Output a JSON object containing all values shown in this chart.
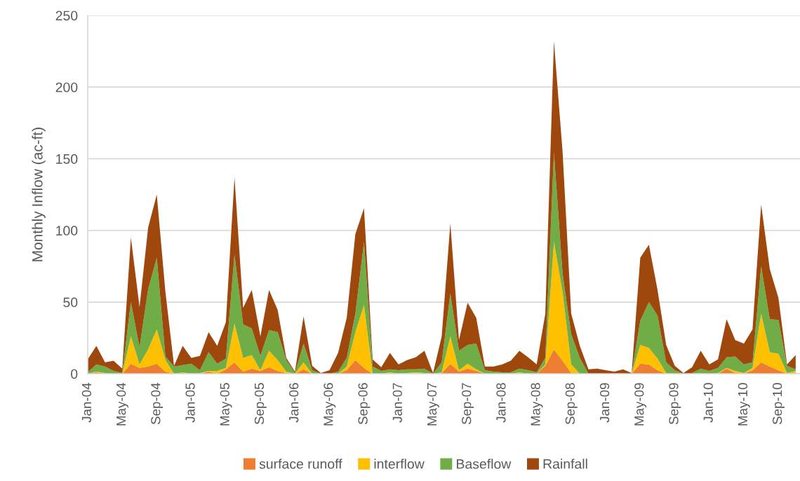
{
  "chart_data": {
    "type": "area",
    "stacked": true,
    "ylabel": "Monthly Inflow (ac-ft)",
    "categories": [
      "Jan-04",
      null,
      null,
      null,
      "May-04",
      null,
      null,
      null,
      "Sep-04",
      null,
      null,
      null,
      "Jan-05",
      null,
      null,
      null,
      "May-05",
      null,
      null,
      null,
      "Sep-05",
      null,
      null,
      null,
      "Jan-06",
      null,
      null,
      null,
      "May-06",
      null,
      null,
      null,
      "Sep-06",
      null,
      null,
      null,
      "Jan-07",
      null,
      null,
      null,
      "May-07",
      null,
      null,
      null,
      "Sep-07",
      null,
      null,
      null,
      "Jan-08",
      null,
      null,
      null,
      "May-08",
      null,
      null,
      null,
      "Sep-08",
      null,
      null,
      null,
      "Jan-09",
      null,
      null,
      null,
      "May-09",
      null,
      null,
      null,
      "Sep-09",
      null,
      null,
      null,
      "Jan-10",
      null,
      null,
      null,
      "May-10",
      null,
      null,
      null,
      "Sep-10",
      null,
      null
    ],
    "series": [
      {
        "name": "surface runoff",
        "color": "#ed7d31",
        "values": [
          0,
          1,
          0,
          0,
          0,
          7,
          4,
          5,
          7,
          1.5,
          0,
          0.5,
          0,
          0,
          1.5,
          0,
          3,
          8,
          1.5,
          3.5,
          2,
          4.5,
          2,
          0.5,
          0,
          3,
          0,
          0,
          0,
          0,
          2.5,
          9.5,
          4,
          0,
          0,
          0.5,
          0,
          0,
          0,
          0,
          0,
          0.5,
          7,
          1.5,
          3.5,
          2,
          0,
          0,
          0,
          0,
          0,
          0,
          0,
          5.5,
          17,
          9,
          0.5,
          0,
          0,
          0,
          0,
          0,
          0,
          0,
          7,
          6.5,
          2.5,
          0,
          0,
          0,
          0,
          0,
          0,
          0,
          3.5,
          0.5,
          0,
          2.5,
          8,
          5,
          2.5,
          0,
          0
        ]
      },
      {
        "name": "interflow",
        "color": "#ffc000",
        "values": [
          0,
          0.5,
          0.5,
          0,
          0,
          19,
          2.5,
          12,
          24,
          8,
          0,
          0.5,
          0,
          0.5,
          0.5,
          2,
          1,
          27,
          9.5,
          9.5,
          0.5,
          11.5,
          7.5,
          1,
          0,
          5,
          0,
          0,
          0,
          0,
          2.5,
          19.5,
          44,
          0,
          0,
          0.5,
          0,
          0.5,
          1,
          0.5,
          0,
          0.5,
          19,
          1,
          3.5,
          1,
          0,
          0,
          0,
          0,
          1,
          0,
          0,
          1,
          75,
          48,
          6,
          0,
          0,
          0,
          0,
          0,
          0,
          0,
          13,
          11.5,
          8,
          0.5,
          0,
          0,
          0,
          0.5,
          0,
          0.5,
          0.5,
          1.5,
          0.5,
          1.5,
          34,
          10,
          11.5,
          0.5,
          2
        ]
      },
      {
        "name": "Baseflow",
        "color": "#70ad47",
        "values": [
          1,
          5,
          4.5,
          2,
          0.5,
          24,
          12,
          42,
          50,
          2.5,
          5,
          5,
          7,
          2,
          13,
          5,
          6.5,
          48,
          23.5,
          18.5,
          10,
          14.5,
          19.5,
          8,
          0.5,
          13,
          2.5,
          0,
          0,
          1.5,
          6,
          13,
          44,
          5,
          2,
          2,
          2.5,
          2.5,
          2,
          3,
          0,
          7,
          30,
          13.5,
          13,
          18,
          2.5,
          1.5,
          1,
          1,
          2.5,
          2.5,
          1,
          4.5,
          62.5,
          13,
          21,
          11,
          0,
          0,
          0,
          0,
          0,
          0,
          17,
          32,
          30,
          7.5,
          2.5,
          0,
          0.5,
          3,
          2,
          3.5,
          7.5,
          10,
          6,
          4,
          33,
          23,
          23.5,
          5,
          1
        ]
      },
      {
        "name": "Rainfall",
        "color": "#9e480e",
        "values": [
          9,
          13,
          3,
          7,
          3,
          45,
          28,
          43,
          44,
          45,
          0.5,
          13.5,
          4,
          10,
          14,
          12.5,
          25.5,
          54,
          11.5,
          27,
          13.5,
          28,
          15.5,
          1.5,
          1,
          19,
          3,
          0.5,
          2.5,
          13,
          28,
          55.5,
          23.5,
          5,
          2.5,
          11.5,
          4,
          6.5,
          8.5,
          12.5,
          0.5,
          18,
          49,
          7.5,
          29.5,
          18,
          2.5,
          3.5,
          5.5,
          8,
          12.5,
          9,
          5.5,
          31,
          77.5,
          85,
          14.5,
          8.5,
          3,
          3.5,
          2.5,
          1.5,
          3,
          0.5,
          44,
          40,
          18,
          12,
          3,
          0.5,
          4,
          12.5,
          4.5,
          6,
          26.5,
          11.5,
          14.5,
          23,
          43,
          35,
          15.5,
          1,
          10
        ]
      }
    ],
    "ylim": [
      0,
      250
    ],
    "yticks": [
      0,
      50,
      100,
      150,
      200,
      250
    ],
    "grid": "y",
    "legend": "bottom"
  }
}
